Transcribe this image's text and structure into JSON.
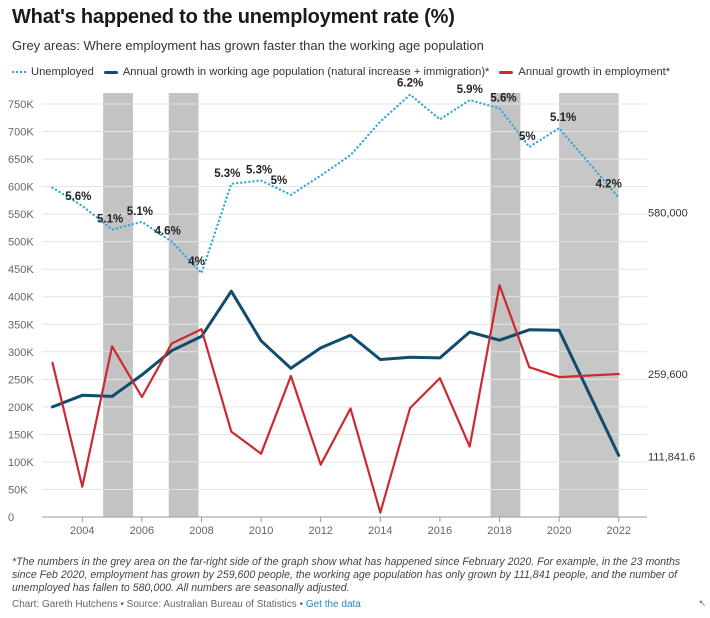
{
  "title": "What's happened to the unemployment rate (%)",
  "subtitle": "Grey areas: Where employment has grown faster than the working age population",
  "legend": [
    {
      "label": "Unemployed",
      "color": "#2ea8d8",
      "style": "dotted"
    },
    {
      "label": "Annual growth in working age population (natural increase + immigration)*",
      "color": "#0f4c6e",
      "style": "solid"
    },
    {
      "label": "Annual growth in employment*",
      "color": "#cc2a2e",
      "style": "solid"
    }
  ],
  "chart_data": {
    "type": "line",
    "x": [
      2003,
      2004,
      2005,
      2006,
      2007,
      2008,
      2009,
      2010,
      2011,
      2012,
      2013,
      2014,
      2015,
      2016,
      2017,
      2018,
      2019,
      2020,
      2022
    ],
    "x_ticks": [
      "2004",
      "2006",
      "2008",
      "2010",
      "2012",
      "2014",
      "2016",
      "2018",
      "2020",
      "2022"
    ],
    "y_ticks": [
      "0",
      "50K",
      "100K",
      "150K",
      "200K",
      "250K",
      "300K",
      "350K",
      "400K",
      "450K",
      "500K",
      "550K",
      "600K",
      "650K",
      "700K",
      "750K"
    ],
    "ylim": [
      0,
      750000
    ],
    "grey_bands": [
      [
        2004.7,
        2005.7
      ],
      [
        2006.9,
        2007.9
      ],
      [
        2017.7,
        2018.7
      ],
      [
        2020,
        2022
      ]
    ],
    "series": [
      {
        "name": "Unemployed",
        "color": "#2ea8d8",
        "style": "dotted",
        "values": [
          598000,
          565000,
          522000,
          536000,
          500000,
          443000,
          605000,
          611000,
          585000,
          620000,
          657000,
          718000,
          767000,
          722000,
          757000,
          742000,
          672000,
          706000,
          580000
        ],
        "rate_labels": [
          "",
          "5.6%",
          "5.1%",
          "5.1%",
          "4.6%",
          "4%",
          "5.3%",
          "5.3%",
          "5%",
          "",
          "",
          "",
          "6.2%",
          "",
          "5.9%",
          "5.6%",
          "5%",
          "5.1%",
          "4.2%"
        ]
      },
      {
        "name": "Annual growth in working age population (natural increase + immigration)*",
        "color": "#0f4c6e",
        "style": "solid",
        "values": [
          200000,
          221000,
          219000,
          258000,
          302000,
          328000,
          410000,
          320000,
          270000,
          307000,
          330000,
          286000,
          290000,
          289000,
          336000,
          321000,
          340000,
          339000,
          111841.6
        ]
      },
      {
        "name": "Annual growth in employment*",
        "color": "#cc2a2e",
        "style": "solid",
        "values": [
          280000,
          55000,
          310000,
          218000,
          315000,
          341000,
          155000,
          115000,
          256000,
          95000,
          197000,
          8000,
          198000,
          252000,
          128000,
          421000,
          272000,
          254000,
          259600
        ]
      }
    ],
    "end_labels": [
      "580,000",
      "259,600",
      "111,841.6"
    ]
  },
  "note": "*The numbers in the grey area on the far-right side of the graph show what has happened since February 2020. For example, in the 23 months since Feb 2020, employment has grown by 259,600 people, the working age population has only grown by 111,841 people, and the number of unemployed has fallen to 580,000. All numbers are seasonally adjusted.",
  "credit": {
    "text": "Chart: Gareth Hutchens • Source: Australian Bureau of Statistics •",
    "link": "Get the data"
  }
}
